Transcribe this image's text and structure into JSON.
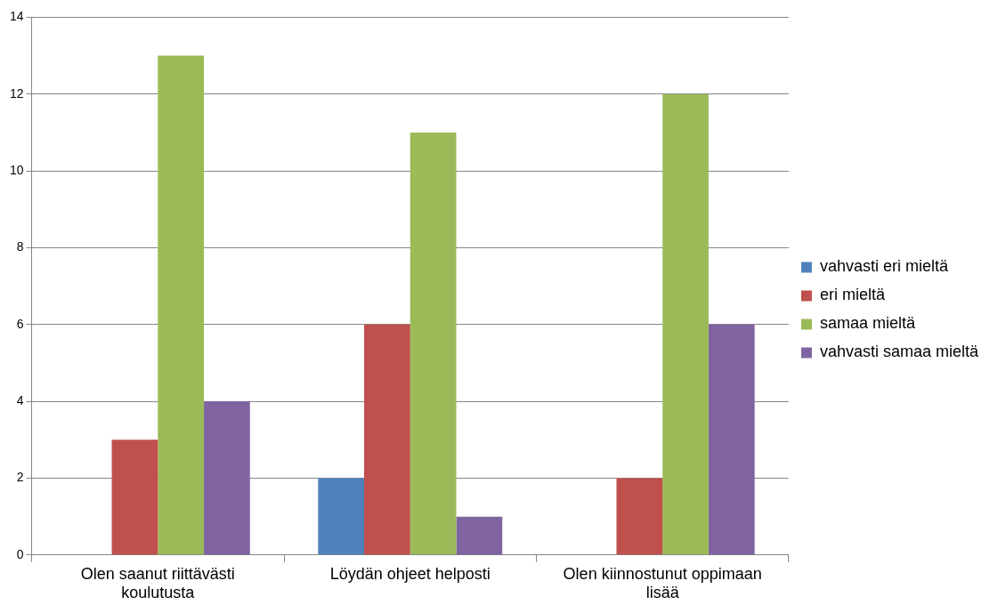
{
  "chart_data": {
    "type": "bar",
    "categories": [
      "Olen saanut riittävästi koulutusta",
      "Löydän ohjeet helposti",
      "Olen kiinnostunut oppimaan lisää"
    ],
    "series": [
      {
        "name": "vahvasti eri mieltä",
        "color": "#4f81bd",
        "values": [
          0,
          2,
          0
        ]
      },
      {
        "name": "eri mieltä",
        "color": "#c0504d",
        "values": [
          3,
          6,
          2
        ]
      },
      {
        "name": "samaa mieltä",
        "color": "#9bbb59",
        "values": [
          13,
          11,
          12
        ]
      },
      {
        "name": "vahvasti samaa mieltä",
        "color": "#8064a2",
        "values": [
          4,
          1,
          6
        ]
      }
    ],
    "ylim": [
      0,
      14
    ],
    "yticks": [
      0,
      2,
      4,
      6,
      8,
      10,
      12,
      14
    ],
    "grid": "y",
    "legend": "right"
  }
}
